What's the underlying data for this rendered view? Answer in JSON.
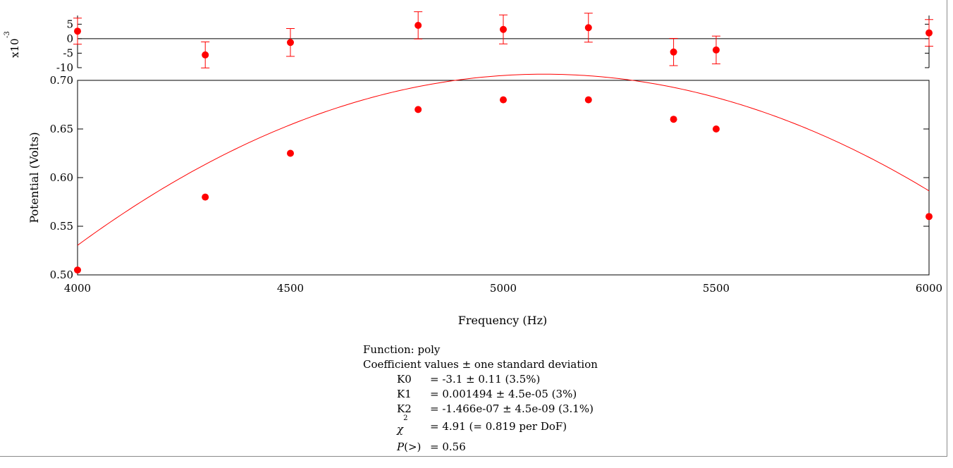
{
  "chart_data": [
    {
      "type": "scatter",
      "panel": "residuals",
      "ylabel_multiplier": "x10",
      "ylabel_exponent": "-3",
      "xlim": [
        4000,
        6000
      ],
      "ylim": [
        -10,
        8
      ],
      "yticks": [
        5,
        0,
        -5,
        -10
      ],
      "ytick_labels": [
        "5",
        "0",
        "-5",
        "-10"
      ],
      "x": [
        4000,
        4300,
        4500,
        4800,
        5000,
        5200,
        5400,
        5500,
        6000
      ],
      "y": [
        2.6,
        -5.6,
        -1.3,
        4.6,
        3.2,
        3.8,
        -4.6,
        -3.9,
        2.0
      ],
      "err": [
        4.5,
        4.5,
        4.8,
        4.7,
        5.0,
        5.0,
        4.7,
        4.8,
        4.6
      ],
      "zero_line": true,
      "color": "#ff0000"
    },
    {
      "type": "scatter",
      "panel": "main",
      "xlabel": "Frequency (Hz)",
      "ylabel": "Potential (Volts)",
      "xlim": [
        4000,
        6000
      ],
      "ylim": [
        0.5,
        0.7
      ],
      "xticks": [
        4000,
        4500,
        5000,
        5500,
        6000
      ],
      "xtick_labels": [
        "4000",
        "4500",
        "5000",
        "5500",
        "6000"
      ],
      "yticks": [
        0.7,
        0.65,
        0.6,
        0.55,
        0.5
      ],
      "ytick_labels": [
        "0.70",
        "0.65",
        "0.60",
        "0.55",
        "0.50"
      ],
      "x": [
        4000,
        4300,
        4500,
        4800,
        5000,
        5200,
        5400,
        5500,
        6000
      ],
      "y": [
        0.505,
        0.58,
        0.625,
        0.67,
        0.68,
        0.68,
        0.66,
        0.65,
        0.56
      ],
      "fit": {
        "function": "poly",
        "coefficients": [
          -3.1,
          0.001494,
          -1.466e-07
        ]
      },
      "color": "#ff0000"
    }
  ],
  "fit_report": {
    "function_line": "Function: poly",
    "coef_header": "Coefficient values ± one standard deviation",
    "coefficients": [
      {
        "name": "K0",
        "value": "= -3.1 ± 0.11  (3.5%)"
      },
      {
        "name": "K1",
        "value": "= 0.001494 ± 4.5e-05  (3%)"
      },
      {
        "name": "K2",
        "value": "= -1.466e-07 ± 4.5e-09  (3.1%)"
      }
    ],
    "chi_symbol": "χ",
    "chi_exponent": "2",
    "chi_value": "= 4.91 (= 0.819 per DoF)",
    "p_label_italic": "P",
    "p_label_rest": "(>)",
    "p_value": "= 0.56"
  }
}
